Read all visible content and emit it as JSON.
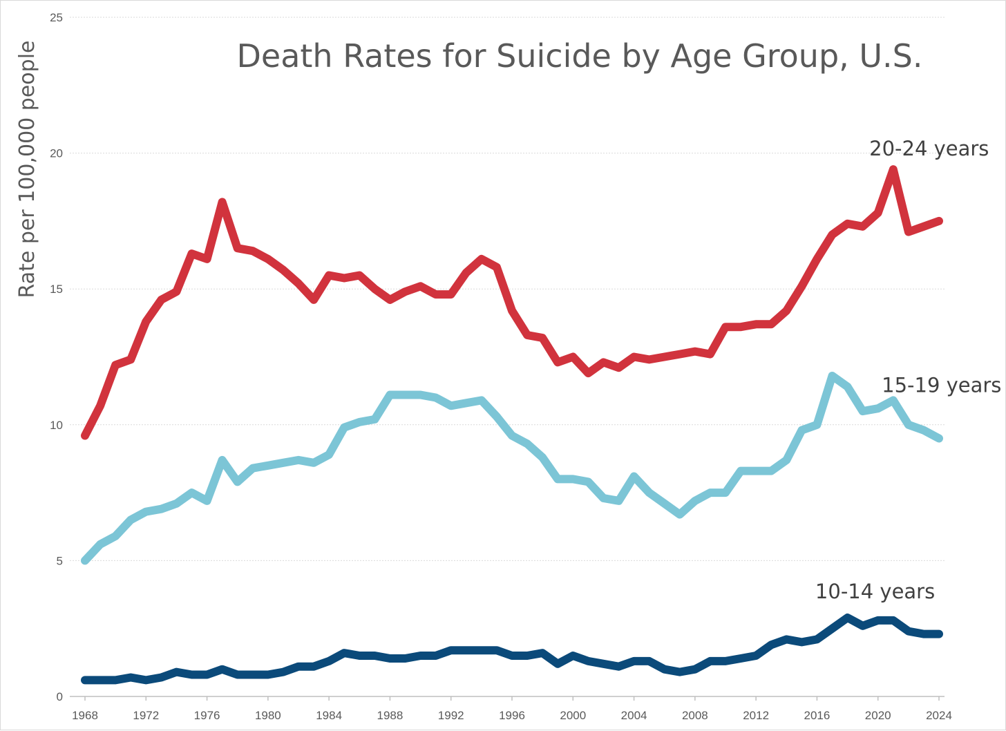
{
  "chart_data": {
    "type": "line",
    "title": "Death Rates for Suicide by Age Group, U.S.",
    "xlabel": "",
    "ylabel": "Rate per 100,000 people",
    "xlim": [
      1968,
      2024
    ],
    "ylim": [
      0,
      25
    ],
    "yticks": [
      "0",
      "5",
      "10",
      "15",
      "20",
      "25"
    ],
    "xticks": [
      "1968",
      "1972",
      "1976",
      "1980",
      "1984",
      "1988",
      "1992",
      "1996",
      "2000",
      "2004",
      "2008",
      "2012",
      "2016",
      "2020",
      "2024"
    ],
    "grid": true,
    "x": [
      1968,
      1969,
      1970,
      1971,
      1972,
      1973,
      1974,
      1975,
      1976,
      1977,
      1978,
      1979,
      1980,
      1981,
      1982,
      1983,
      1984,
      1985,
      1986,
      1987,
      1988,
      1989,
      1990,
      1991,
      1992,
      1993,
      1994,
      1995,
      1996,
      1997,
      1998,
      1999,
      2000,
      2001,
      2002,
      2003,
      2004,
      2005,
      2006,
      2007,
      2008,
      2009,
      2010,
      2011,
      2012,
      2013,
      2014,
      2015,
      2016,
      2017,
      2018,
      2019,
      2020,
      2021,
      2022,
      2023,
      2024
    ],
    "series": [
      {
        "name": "20-24 years",
        "color": "#d1333d",
        "values": [
          9.6,
          10.7,
          12.2,
          12.4,
          13.8,
          14.6,
          14.9,
          16.3,
          16.1,
          18.2,
          16.5,
          16.4,
          16.1,
          15.7,
          15.2,
          14.6,
          15.5,
          15.4,
          15.5,
          15.0,
          14.6,
          14.9,
          15.1,
          14.8,
          14.8,
          15.6,
          16.1,
          15.8,
          14.2,
          13.3,
          13.2,
          12.3,
          12.5,
          11.9,
          12.3,
          12.1,
          12.5,
          12.4,
          12.5,
          12.6,
          12.7,
          12.6,
          13.6,
          13.6,
          13.7,
          13.7,
          14.2,
          15.1,
          16.1,
          17.0,
          17.4,
          17.3,
          17.8,
          19.4,
          17.1,
          17.3,
          17.5
        ]
      },
      {
        "name": "15-19 years",
        "color": "#7cc5d6",
        "values": [
          5.0,
          5.6,
          5.9,
          6.5,
          6.8,
          6.9,
          7.1,
          7.5,
          7.2,
          8.7,
          7.9,
          8.4,
          8.5,
          8.6,
          8.7,
          8.6,
          8.9,
          9.9,
          10.1,
          10.2,
          11.1,
          11.1,
          11.1,
          11.0,
          10.7,
          10.8,
          10.9,
          10.3,
          9.6,
          9.3,
          8.8,
          8.0,
          8.0,
          7.9,
          7.3,
          7.2,
          8.1,
          7.5,
          7.1,
          6.7,
          7.2,
          7.5,
          7.5,
          8.3,
          8.3,
          8.3,
          8.7,
          9.8,
          10.0,
          11.8,
          11.4,
          10.5,
          10.6,
          10.9,
          10.0,
          9.8,
          9.5
        ]
      },
      {
        "name": "10-14 years",
        "color": "#0b4a7a",
        "values": [
          0.6,
          0.6,
          0.6,
          0.7,
          0.6,
          0.7,
          0.9,
          0.8,
          0.8,
          1.0,
          0.8,
          0.8,
          0.8,
          0.9,
          1.1,
          1.1,
          1.3,
          1.6,
          1.5,
          1.5,
          1.4,
          1.4,
          1.5,
          1.5,
          1.7,
          1.7,
          1.7,
          1.7,
          1.5,
          1.5,
          1.6,
          1.2,
          1.5,
          1.3,
          1.2,
          1.1,
          1.3,
          1.3,
          1.0,
          0.9,
          1.0,
          1.3,
          1.3,
          1.4,
          1.5,
          1.9,
          2.1,
          2.0,
          2.1,
          2.5,
          2.9,
          2.6,
          2.8,
          2.8,
          2.4,
          2.3,
          2.3
        ]
      }
    ]
  }
}
